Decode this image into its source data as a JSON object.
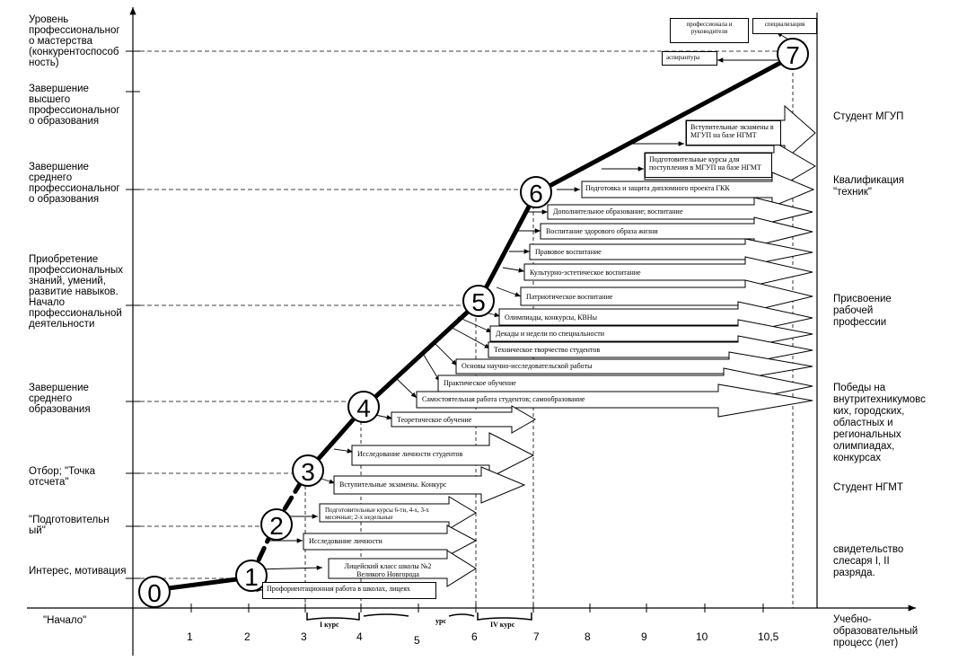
{
  "left_labels": {
    "mastery": "Уровень профессиональног о мастерства (конкурентоспособ ность)",
    "higher": "Завершение высшего профессиональног о образования",
    "secondary_prof": "Завершение среднего профессиональног о образования",
    "acquire": "Приобретение профессиональных знаний, умений, развитие навыков. Начало профессиональной деятельности",
    "secondary": "Завершение среднего образования",
    "selection": "Отбор; \"Точка отсчета\"",
    "preparatory": "\"Подготовительн ый\"",
    "interest": "Интерес, мотивация",
    "start": "\"Начало\""
  },
  "right_labels": {
    "student_mgup": "Студент МГУП",
    "qualification": "Квалификация \"техник\"",
    "worker": "Присвоение рабочей профессии",
    "victories": "Победы на внутритехникумовс ких, городских, областных и региональных олимпиадах, конкурсах",
    "student_ngmt": "Студент НГМТ",
    "certificate": "свидетельство слесаря I, II разряда.",
    "axis_title": "Учебно-образовательный процесс (лет)"
  },
  "nodes": [
    "0",
    "1",
    "2",
    "3",
    "4",
    "5",
    "6",
    "7"
  ],
  "axis_ticks": [
    "1",
    "2",
    "3",
    "4",
    "5",
    "6",
    "7",
    "8",
    "9",
    "10",
    "10,5"
  ],
  "courses": {
    "c1": "I курс",
    "c3": "урс",
    "c4": "IV курс"
  },
  "boxes": {
    "prof_leader": "профессионала и руководителя",
    "specialization": "специализация",
    "aspirantura": "аспирантура",
    "entrance_mgup": "Вступительные экзамены в МГУП на базе НГМТ",
    "prep_mgup": "Подготовительные курсы для поступления в МГУП на базе НГМТ",
    "diploma": "Подготовка и защита дипломного проекта ГКК",
    "additional": "Дополнительное образование; воспитание",
    "health": "Воспитание здорового образа жизни",
    "legal": "Правовое воспитание",
    "culture": "Культурно-эстетическое воспитание",
    "patriotic": "Патриотическое воспитание",
    "olympiads": "Олимпиады, конкурсы, КВНы",
    "decades": "Декады и недели по специальности",
    "technical": "Техническое творчество студентов",
    "research": "Основы научно-исследовательской работы",
    "practical": "Практическое обучение",
    "selfwork": "Самостоятельная работа студентов; самообразование",
    "theory": "Теоретическое обучение",
    "personality_students": "Исследование личности студентов",
    "entrance_exams": "Вступительные экзамены. Конкурс",
    "prep_courses": "Подготовительные курсы 6-ти, 4-х, 3-х месячные; 2-х недельные",
    "personality": "Исследование личности",
    "lyceum": "Лицейский класс школы №2 Великого Новгорода",
    "profor": "Профориентационная работа в школах, лицеях"
  }
}
